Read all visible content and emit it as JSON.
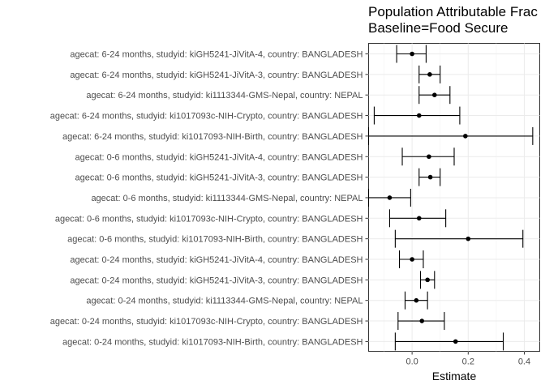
{
  "chart_data": {
    "type": "forest",
    "title_lines": [
      "Population Attributable Frac",
      "Baseline=Food Secure"
    ],
    "xlabel": "Estimate",
    "xlim": [
      -0.155,
      0.455
    ],
    "xticks": [
      0.0,
      0.2,
      0.4
    ],
    "xtick_labels": [
      "0.0",
      "0.2",
      "0.4"
    ],
    "grid": true,
    "points": [
      {
        "label": "agecat: 6-24 months, studyid: kiGH5241-JiVitA-4, country: BANGLADESH",
        "estimate": 0.0,
        "lower": -0.055,
        "upper": 0.05
      },
      {
        "label": "agecat: 6-24 months, studyid: kiGH5241-JiVitA-3, country: BANGLADESH",
        "estimate": 0.063,
        "lower": 0.025,
        "upper": 0.1
      },
      {
        "label": "agecat: 6-24 months, studyid: ki1113344-GMS-Nepal, country: NEPAL",
        "estimate": 0.08,
        "lower": 0.025,
        "upper": 0.135
      },
      {
        "label": "agecat: 6-24 months, studyid: ki1017093c-NIH-Crypto, country: BANGLADESH",
        "estimate": 0.025,
        "lower": -0.135,
        "upper": 0.17
      },
      {
        "label": "agecat: 6-24 months, studyid: ki1017093-NIH-Birth, country: BANGLADESH",
        "estimate": 0.19,
        "lower": -0.155,
        "upper": 0.43
      },
      {
        "label": "agecat: 0-6 months, studyid: kiGH5241-JiVitA-4, country: BANGLADESH",
        "estimate": 0.06,
        "lower": -0.035,
        "upper": 0.15
      },
      {
        "label": "agecat: 0-6 months, studyid: kiGH5241-JiVitA-3, country: BANGLADESH",
        "estimate": 0.065,
        "lower": 0.025,
        "upper": 0.1
      },
      {
        "label": "agecat: 0-6 months, studyid: ki1113344-GMS-Nepal, country: NEPAL",
        "estimate": -0.08,
        "lower": -0.155,
        "upper": -0.005
      },
      {
        "label": "agecat: 0-6 months, studyid: ki1017093c-NIH-Crypto, country: BANGLADESH",
        "estimate": 0.025,
        "lower": -0.08,
        "upper": 0.12
      },
      {
        "label": "agecat: 0-6 months, studyid: ki1017093-NIH-Birth, country: BANGLADESH",
        "estimate": 0.2,
        "lower": -0.06,
        "upper": 0.395
      },
      {
        "label": "agecat: 0-24 months, studyid: kiGH5241-JiVitA-4, country: BANGLADESH",
        "estimate": 0.0,
        "lower": -0.045,
        "upper": 0.04
      },
      {
        "label": "agecat: 0-24 months, studyid: kiGH5241-JiVitA-3, country: BANGLADESH",
        "estimate": 0.055,
        "lower": 0.03,
        "upper": 0.08
      },
      {
        "label": "agecat: 0-24 months, studyid: ki1113344-GMS-Nepal, country: NEPAL",
        "estimate": 0.015,
        "lower": -0.025,
        "upper": 0.055
      },
      {
        "label": "agecat: 0-24 months, studyid: ki1017093c-NIH-Crypto, country: BANGLADESH",
        "estimate": 0.035,
        "lower": -0.05,
        "upper": 0.115
      },
      {
        "label": "agecat: 0-24 months, studyid: ki1017093-NIH-Birth, country: BANGLADESH",
        "estimate": 0.155,
        "lower": -0.06,
        "upper": 0.325
      }
    ]
  }
}
